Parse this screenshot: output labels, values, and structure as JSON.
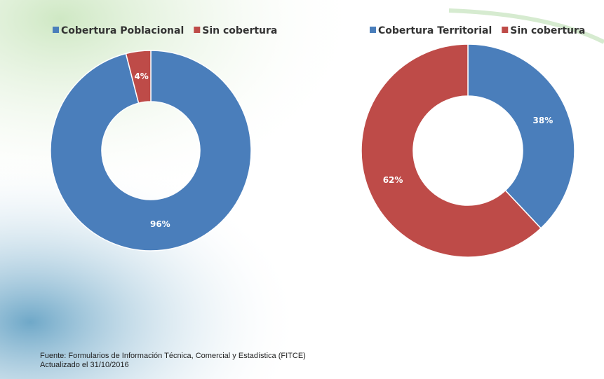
{
  "chart_data": [
    {
      "type": "pie",
      "categories": [
        "Cobertura Poblacional",
        "Sin cobertura"
      ],
      "values": [
        96,
        4
      ],
      "value_labels": [
        "96%",
        "4%"
      ],
      "colors": [
        "#4a7ebb",
        "#be4b48"
      ],
      "legend": "top"
    },
    {
      "type": "pie",
      "categories": [
        "Cobertura Territorial",
        "Sin cobertura"
      ],
      "values": [
        38,
        62
      ],
      "value_labels": [
        "38%",
        "62%"
      ],
      "colors": [
        "#4a7ebb",
        "#be4b48"
      ],
      "legend": "top"
    }
  ],
  "footer": {
    "source": "Fuente: Formularios de Información Técnica, Comercial y Estadística (FITCE)",
    "updated": "Actualizado el 31/10/2016"
  }
}
